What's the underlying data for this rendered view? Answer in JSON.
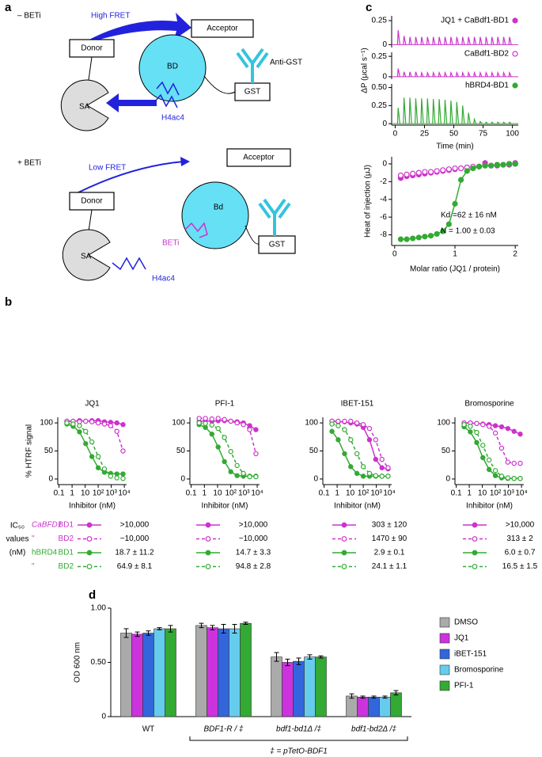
{
  "panel_labels": [
    "a",
    "b",
    "c",
    "d"
  ],
  "diagram": {
    "minus_label": "– BETi",
    "high_fret": "High FRET",
    "acceptor_1": "Acceptor",
    "donor_1": "Donor",
    "bd_1": "BD",
    "sa_1": "SA",
    "anti_gst": "Anti-GST",
    "gst_1": "GST",
    "h4ac4_1": "H4ac4",
    "plus_label": "+ BETi",
    "low_fret": "Low FRET",
    "acceptor_2": "Acceptor",
    "donor_2": "Donor",
    "bd_2": "Bd",
    "beti": "BETi",
    "gst_2": "GST",
    "sa_2": "SA",
    "h4ac4_2": "H4ac4"
  },
  "ic50_table": {
    "header": [
      "IC₅₀",
      "values",
      "(nM)"
    ],
    "rows": [
      [
        "CaBFD1",
        "BD1"
      ],
      [
        "\"",
        "BD2"
      ],
      [
        "hBRD4",
        "BD1"
      ],
      [
        "\"",
        "BD2"
      ]
    ],
    "values": [
      [
        ">10,000",
        "~10,000",
        "18.7 ± 11.2",
        "64.9 ± 8.1"
      ],
      [
        ">10,000",
        "~10,000",
        "14.7 ± 3.3",
        "94.8 ± 2.8"
      ],
      [
        "303 ± 120",
        "1470 ± 90",
        "2.9 ± 0.1",
        "24.1 ± 1.1"
      ],
      [
        ">10,000",
        "313 ± 2",
        "6.0 ± 0.7",
        "16.5 ± 1.5"
      ]
    ]
  },
  "chart_data": [
    {
      "type": "line",
      "title": "JQ1",
      "xlabel": "Inhibitor (nM)",
      "ylabel": "% HTRF signal",
      "xscale": "log",
      "x": [
        0.4,
        1.2,
        3.7,
        11,
        33,
        100,
        300,
        900,
        2700,
        8000
      ],
      "xlim": [
        0.08,
        15000
      ],
      "xticks": [
        0.1,
        1,
        10,
        {
          "value": 100,
          "label": "10²"
        },
        {
          "value": 1000,
          "label": "10³"
        },
        {
          "value": 10000,
          "label": "10⁴"
        }
      ],
      "ylim": [
        -10,
        110
      ],
      "yticks": [
        0,
        50,
        100
      ],
      "series": [
        {
          "color": "#cc33cc",
          "linestyle": "solid",
          "marker": "filled",
          "values": [
            103,
            103,
            104,
            103,
            104,
            104,
            102,
            101,
            100,
            97
          ]
        },
        {
          "color": "#cc33cc",
          "linestyle": "dashed",
          "marker": "open",
          "values": [
            103,
            103,
            102,
            103,
            102,
            100,
            98,
            95,
            85,
            50
          ]
        },
        {
          "color": "#33aa33",
          "linestyle": "solid",
          "marker": "filled",
          "values": [
            98,
            94,
            84,
            63,
            40,
            20,
            12,
            10,
            9,
            9
          ]
        },
        {
          "color": "#33aa33",
          "linestyle": "dashed",
          "marker": "open",
          "values": [
            100,
            98,
            95,
            85,
            66,
            40,
            18,
            5,
            2,
            1
          ]
        }
      ]
    },
    {
      "type": "line",
      "title": "PFI-1",
      "xlabel": "Inhibitor (nM)",
      "xscale": "log",
      "x": [
        0.4,
        1.2,
        3.7,
        11,
        33,
        100,
        300,
        900,
        2700,
        8000
      ],
      "xlim": [
        0.08,
        15000
      ],
      "xticks": [
        0.1,
        1,
        10,
        {
          "value": 100,
          "label": "10²"
        },
        {
          "value": 1000,
          "label": "10³"
        },
        {
          "value": 10000,
          "label": "10⁴"
        }
      ],
      "ylim": [
        -10,
        110
      ],
      "yticks": [
        0,
        50,
        100
      ],
      "series": [
        {
          "color": "#cc33cc",
          "linestyle": "solid",
          "marker": "filled",
          "values": [
            102,
            104,
            103,
            104,
            104,
            103,
            102,
            100,
            95,
            88
          ]
        },
        {
          "color": "#cc33cc",
          "linestyle": "dashed",
          "marker": "open",
          "values": [
            108,
            108,
            107,
            108,
            106,
            103,
            100,
            97,
            88,
            45
          ]
        },
        {
          "color": "#33aa33",
          "linestyle": "solid",
          "marker": "filled",
          "values": [
            97,
            92,
            80,
            57,
            31,
            13,
            6,
            5,
            5,
            5
          ]
        },
        {
          "color": "#33aa33",
          "linestyle": "dashed",
          "marker": "open",
          "values": [
            100,
            99,
            96,
            90,
            74,
            49,
            24,
            10,
            4,
            4
          ]
        }
      ]
    },
    {
      "type": "line",
      "title": "IBET-151",
      "xlabel": "Inhibitor (nM)",
      "xscale": "log",
      "x": [
        0.4,
        1.2,
        3.7,
        11,
        33,
        100,
        300,
        900,
        2700,
        8000
      ],
      "xlim": [
        0.08,
        15000
      ],
      "xticks": [
        0.1,
        1,
        10,
        {
          "value": 100,
          "label": "10²"
        },
        {
          "value": 1000,
          "label": "10³"
        },
        {
          "value": 10000,
          "label": "10⁴"
        }
      ],
      "ylim": [
        -10,
        110
      ],
      "yticks": [
        0,
        50,
        100
      ],
      "series": [
        {
          "color": "#cc33cc",
          "linestyle": "solid",
          "marker": "filled",
          "values": [
            103,
            102,
            102,
            100,
            98,
            92,
            70,
            35,
            20,
            18
          ]
        },
        {
          "color": "#cc33cc",
          "linestyle": "dashed",
          "marker": "open",
          "values": [
            103,
            103,
            103,
            103,
            100,
            97,
            90,
            70,
            35,
            20
          ]
        },
        {
          "color": "#33aa33",
          "linestyle": "solid",
          "marker": "filled",
          "values": [
            85,
            70,
            45,
            22,
            10,
            5,
            5,
            5,
            5,
            5
          ]
        },
        {
          "color": "#33aa33",
          "linestyle": "dashed",
          "marker": "open",
          "values": [
            98,
            95,
            88,
            70,
            45,
            22,
            10,
            6,
            5,
            5
          ]
        }
      ]
    },
    {
      "type": "line",
      "title": "Bromosporine",
      "xlabel": "Inhibitor (nM)",
      "xscale": "log",
      "x": [
        0.4,
        1.2,
        3.7,
        11,
        33,
        100,
        300,
        900,
        2700,
        8000
      ],
      "xlim": [
        0.08,
        15000
      ],
      "xticks": [
        0.1,
        1,
        10,
        {
          "value": 100,
          "label": "10²"
        },
        {
          "value": 1000,
          "label": "10³"
        },
        {
          "value": 10000,
          "label": "10⁴"
        }
      ],
      "ylim": [
        -10,
        110
      ],
      "yticks": [
        0,
        50,
        100
      ],
      "series": [
        {
          "color": "#cc33cc",
          "linestyle": "solid",
          "marker": "filled",
          "values": [
            100,
            100,
            99,
            98,
            97,
            95,
            93,
            90,
            85,
            80
          ]
        },
        {
          "color": "#cc33cc",
          "linestyle": "dashed",
          "marker": "open",
          "values": [
            100,
            100,
            99,
            97,
            94,
            82,
            55,
            30,
            28,
            28
          ]
        },
        {
          "color": "#33aa33",
          "linestyle": "solid",
          "marker": "filled",
          "values": [
            93,
            84,
            65,
            38,
            17,
            6,
            2,
            1,
            1,
            1
          ]
        },
        {
          "color": "#33aa33",
          "linestyle": "dashed",
          "marker": "open",
          "values": [
            97,
            94,
            83,
            60,
            34,
            15,
            5,
            2,
            1,
            1
          ]
        }
      ]
    },
    {
      "type": "itc",
      "xlabel": "Time (min)",
      "ylabel": "ΔP (μcal s⁻¹)",
      "x": [
        2,
        7,
        12,
        17,
        22,
        27,
        32,
        37,
        42,
        47,
        52,
        57,
        62,
        67,
        72,
        77,
        82,
        87,
        92,
        97
      ],
      "xlim": [
        -3,
        105
      ],
      "xticks": [
        0,
        25,
        50,
        75,
        100
      ],
      "series": [
        {
          "name": "JQ1 + CaBdf1-BD1",
          "color": "#cc33cc",
          "marker": "filled",
          "ylim": [
            -0.03,
            0.3
          ],
          "yticks": [
            0,
            0.25
          ],
          "values": [
            0.15,
            0.09,
            0.08,
            0.08,
            0.08,
            0.08,
            0.08,
            0.08,
            0.08,
            0.08,
            0.08,
            0.08,
            0.08,
            0.08,
            0.08,
            0.08,
            0.08,
            0.08,
            0.08,
            0.08
          ]
        },
        {
          "name": "CaBdf1-BD2",
          "color": "#cc33cc",
          "marker": "open",
          "ylim": [
            -0.03,
            0.3
          ],
          "yticks": [
            0,
            0.25
          ],
          "values": [
            0.1,
            0.06,
            0.06,
            0.06,
            0.05,
            0.05,
            0.05,
            0.05,
            0.05,
            0.05,
            0.05,
            0.05,
            0.05,
            0.05,
            0.05,
            0.05,
            0.05,
            0.05,
            0.05,
            0.05
          ]
        },
        {
          "name": "hBRD4-BD1",
          "color": "#33aa33",
          "marker": "filled",
          "ylim": [
            -0.02,
            0.55
          ],
          "yticks": [
            0,
            0.25,
            {
              "value": 0.5,
              "label": "0.50"
            }
          ],
          "values": [
            0.22,
            0.36,
            0.36,
            0.35,
            0.35,
            0.35,
            0.34,
            0.34,
            0.33,
            0.32,
            0.3,
            0.25,
            0.15,
            0.06,
            0.03,
            0.02,
            0.02,
            0.02,
            0.02,
            0.02
          ]
        }
      ]
    },
    {
      "type": "scatter",
      "xlabel": "Molar ratio (JQ1 / protein)",
      "ylabel": "Heat of injection (μJ)",
      "annotations": [
        "Kd =62 ± 16 nM",
        "N = 1.00 ± 0.03"
      ],
      "x": [
        0.1,
        0.2,
        0.3,
        0.4,
        0.5,
        0.6,
        0.7,
        0.8,
        0.9,
        1.0,
        1.1,
        1.2,
        1.3,
        1.4,
        1.5,
        1.6,
        1.7,
        1.8,
        1.9,
        2.0
      ],
      "xlim": [
        -0.05,
        2.05
      ],
      "xticks": [
        0,
        1,
        2
      ],
      "ylim": [
        -9.2,
        0.8
      ],
      "yticks": [
        -8,
        -6,
        -4,
        -2,
        0
      ],
      "series": [
        {
          "color": "#cc33cc",
          "marker": "filled",
          "line": false,
          "values": [
            -1.6,
            -1.4,
            -1.3,
            -1.2,
            -1.1,
            -1.0,
            -0.9,
            -0.8,
            -0.7,
            -0.6,
            -0.5,
            -0.4,
            -0.4,
            -0.3,
            0.1,
            -0.2,
            -0.2,
            -0.1,
            -0.1,
            0
          ]
        },
        {
          "color": "#cc33cc",
          "marker": "open",
          "line": false,
          "values": [
            -1.3,
            -1.2,
            -1.1,
            -1.0,
            -0.9,
            -0.9,
            -0.8,
            -0.7,
            -0.6,
            -0.5,
            -0.5,
            -0.4,
            -0.3,
            -0.3,
            -0.2,
            -0.2,
            -0.1,
            -0.1,
            0,
            0.1
          ]
        },
        {
          "color": "#33aa33",
          "marker": "filled",
          "line": true,
          "values": [
            -8.5,
            -8.5,
            -8.4,
            -8.3,
            -8.2,
            -8.1,
            -7.9,
            -7.6,
            -6.8,
            -4.5,
            -1.8,
            -0.8,
            -0.5,
            -0.3,
            -0.2,
            -0.2,
            -0.1,
            -0.1,
            0,
            0
          ]
        }
      ]
    },
    {
      "type": "bar",
      "ylabel": "OD 600 nm",
      "annotation": "‡ = pTetO-BDF1",
      "categories": [
        "WT",
        "BDF1-R / ‡",
        "bdf1-bd1Δ /‡",
        "bdf1-bd2Δ /‡"
      ],
      "ylim": [
        0,
        1
      ],
      "yticks": [
        0,
        {
          "value": 0.5,
          "label": "0.50"
        },
        {
          "value": 1,
          "label": "1.00"
        }
      ],
      "series": [
        {
          "name": "DMSO",
          "color": "#aaaaaa",
          "values": [
            0.77,
            0.84,
            0.55,
            0.19
          ],
          "errors": [
            0.04,
            0.02,
            0.04,
            0.02
          ]
        },
        {
          "name": "JQ1",
          "color": "#cc33dd",
          "values": [
            0.76,
            0.82,
            0.5,
            0.18
          ],
          "errors": [
            0.02,
            0.02,
            0.03,
            0.01
          ]
        },
        {
          "name": "iBET-151",
          "color": "#3366dd",
          "values": [
            0.77,
            0.81,
            0.51,
            0.18
          ],
          "errors": [
            0.02,
            0.04,
            0.03,
            0.01
          ]
        },
        {
          "name": "Bromosporine",
          "color": "#66ccee",
          "values": [
            0.81,
            0.81,
            0.55,
            0.18
          ],
          "errors": [
            0.01,
            0.04,
            0.02,
            0.01
          ]
        },
        {
          "name": "PFI-1",
          "color": "#33aa33",
          "values": [
            0.81,
            0.86,
            0.55,
            0.22
          ],
          "errors": [
            0.03,
            0.01,
            0.01,
            0.02
          ]
        }
      ]
    }
  ]
}
